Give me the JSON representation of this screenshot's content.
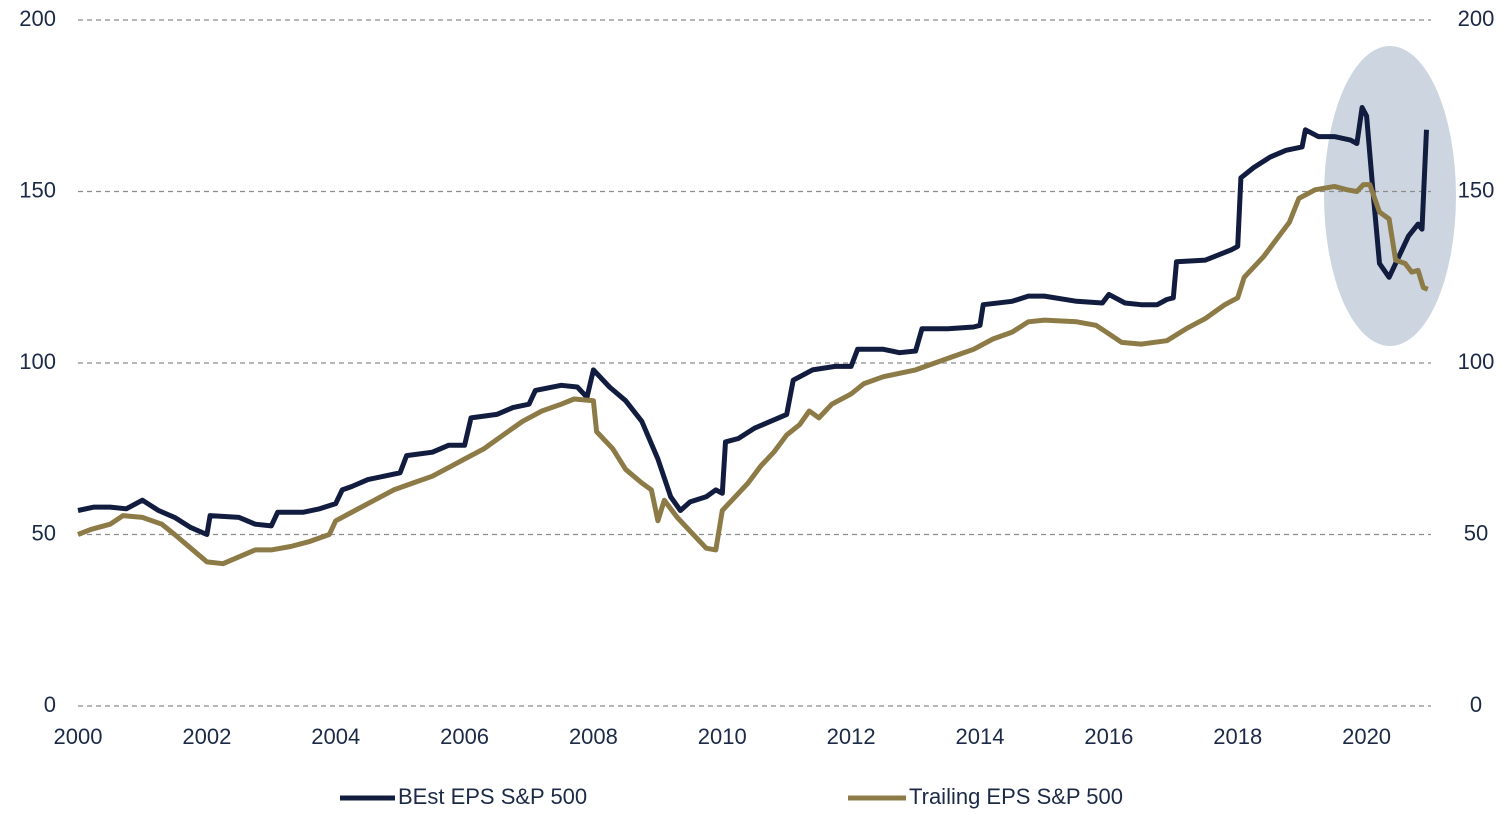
{
  "chart_data": {
    "type": "line",
    "xlim": [
      2000,
      2021
    ],
    "xticks": [
      2000,
      2002,
      2004,
      2006,
      2008,
      2010,
      2012,
      2014,
      2016,
      2018,
      2020
    ],
    "ylim": [
      0,
      200
    ],
    "yticks": [
      0,
      50,
      100,
      150,
      200
    ],
    "y2lim": [
      0,
      200
    ],
    "y2ticks": [
      0,
      50,
      100,
      150,
      200
    ],
    "grid": true,
    "legend": "bottom",
    "series": [
      {
        "name": "BEst EPS S&P 500",
        "color": "#111c3f",
        "x": [
          2000,
          2000.25,
          2000.5,
          2000.75,
          2001,
          2001.25,
          2001.5,
          2001.75,
          2002,
          2002.05,
          2002.5,
          2002.75,
          2003,
          2003.1,
          2003.5,
          2003.75,
          2004,
          2004.1,
          2004.25,
          2004.5,
          2004.75,
          2005,
          2005.1,
          2005.5,
          2005.75,
          2006,
          2006.1,
          2006.5,
          2006.75,
          2007,
          2007.1,
          2007.5,
          2007.75,
          2007.9,
          2008,
          2008.25,
          2008.5,
          2008.75,
          2009,
          2009.2,
          2009.35,
          2009.5,
          2009.75,
          2009.9,
          2010,
          2010.05,
          2010.25,
          2010.5,
          2010.75,
          2011,
          2011.1,
          2011.4,
          2011.75,
          2012,
          2012.1,
          2012.5,
          2012.75,
          2013,
          2013.1,
          2013.5,
          2013.9,
          2014,
          2014.05,
          2014.5,
          2014.75,
          2015,
          2015.5,
          2015.9,
          2016,
          2016.25,
          2016.5,
          2016.75,
          2016.9,
          2017,
          2017.05,
          2017.5,
          2017.9,
          2018,
          2018.05,
          2018.25,
          2018.5,
          2018.75,
          2019,
          2019.05,
          2019.25,
          2019.5,
          2019.75,
          2019.85,
          2019.93,
          2020,
          2020.1,
          2020.2,
          2020.35,
          2020.5,
          2020.65,
          2020.8,
          2020.86,
          2020.93
        ],
        "values": [
          57,
          58,
          58,
          57.5,
          60,
          57,
          55,
          52,
          50,
          55.5,
          55,
          53,
          52.5,
          56.5,
          56.5,
          57.5,
          59,
          63,
          64,
          66,
          67,
          68,
          73,
          74,
          76,
          76,
          84,
          85,
          87,
          88,
          92,
          93.5,
          93,
          90,
          98,
          93,
          89,
          83,
          72,
          61,
          57,
          59.5,
          61,
          63,
          62,
          77,
          78,
          81,
          83,
          85,
          95,
          98,
          99,
          99,
          104,
          104,
          103,
          103.5,
          110,
          110,
          110.5,
          111,
          117,
          118,
          119.5,
          119.5,
          118,
          117.5,
          120,
          117.5,
          117,
          117,
          118.5,
          119,
          129.5,
          130,
          133,
          134,
          154,
          157,
          160,
          162,
          163,
          168,
          166,
          166,
          165,
          164,
          174.5,
          172,
          150,
          129,
          125,
          131,
          137,
          140.5,
          139,
          168
        ]
      },
      {
        "name": "Trailing EPS S&P 500",
        "color": "#8d7b47",
        "x": [
          2000,
          2000.2,
          2000.5,
          2000.7,
          2001,
          2001.3,
          2001.5,
          2001.75,
          2002,
          2002.25,
          2002.5,
          2002.75,
          2003,
          2003.3,
          2003.6,
          2003.9,
          2004,
          2004.3,
          2004.6,
          2004.9,
          2005.2,
          2005.5,
          2005.8,
          2006,
          2006.3,
          2006.6,
          2006.9,
          2007.2,
          2007.5,
          2007.7,
          2008,
          2008.05,
          2008.3,
          2008.5,
          2008.75,
          2008.9,
          2009,
          2009.1,
          2009.3,
          2009.5,
          2009.75,
          2009.9,
          2010,
          2010.2,
          2010.4,
          2010.6,
          2010.8,
          2011,
          2011.2,
          2011.35,
          2011.5,
          2011.7,
          2012,
          2012.2,
          2012.5,
          2012.75,
          2013,
          2013.3,
          2013.6,
          2013.9,
          2014.2,
          2014.5,
          2014.75,
          2015,
          2015.5,
          2015.8,
          2016,
          2016.2,
          2016.5,
          2016.9,
          2017.2,
          2017.5,
          2017.8,
          2018,
          2018.1,
          2018.4,
          2018.6,
          2018.8,
          2018.95,
          2019.2,
          2019.5,
          2019.7,
          2019.85,
          2019.95,
          2020.05,
          2020.2,
          2020.35,
          2020.45,
          2020.6,
          2020.7,
          2020.8,
          2020.88,
          2020.95
        ],
        "values": [
          50,
          51.5,
          53,
          55.5,
          55,
          53,
          50,
          46,
          42,
          41.5,
          43.5,
          45.5,
          45.5,
          46.5,
          48,
          50,
          54,
          57,
          60,
          63,
          65,
          67,
          70,
          72,
          75,
          79,
          83,
          86,
          88,
          89.5,
          89,
          80,
          75,
          69,
          65,
          63,
          54,
          60,
          55,
          51,
          46,
          45.5,
          57,
          61,
          65,
          70,
          74,
          79,
          82,
          86,
          84,
          88,
          91,
          94,
          96,
          97,
          98,
          100,
          102,
          104,
          107,
          109,
          112,
          112.5,
          112,
          111,
          108.5,
          106,
          105.5,
          106.5,
          110,
          113,
          117,
          119,
          125,
          131,
          136,
          141,
          148,
          150.5,
          151.5,
          150.5,
          150,
          152,
          152,
          144,
          142,
          130,
          129,
          126.5,
          127,
          122,
          121.5
        ]
      }
    ]
  }
}
